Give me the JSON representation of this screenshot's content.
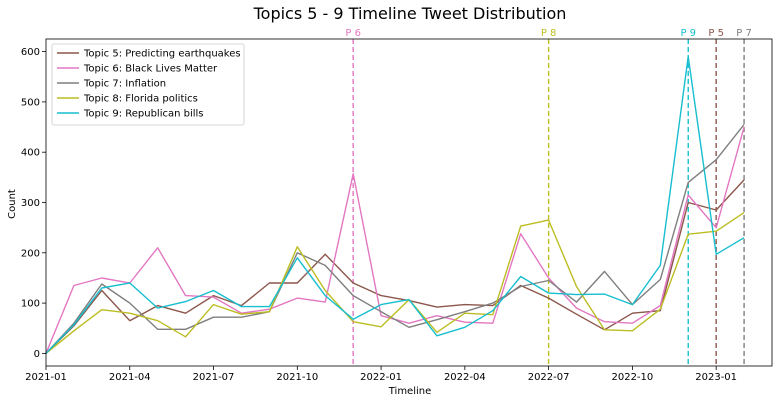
{
  "chart_data": {
    "type": "line",
    "title": "Topics 5 - 9 Timeline Tweet Distribution",
    "xlabel": "Timeline",
    "ylabel": "Count",
    "x": [
      "2021-01",
      "2021-02",
      "2021-03",
      "2021-04",
      "2021-05",
      "2021-06",
      "2021-07",
      "2021-08",
      "2021-09",
      "2021-10",
      "2021-11",
      "2021-12",
      "2022-01",
      "2022-02",
      "2022-03",
      "2022-04",
      "2022-05",
      "2022-06",
      "2022-07",
      "2022-08",
      "2022-09",
      "2022-10",
      "2022-11",
      "2022-12",
      "2023-01",
      "2023-02"
    ],
    "x_ticks": [
      "2021-01",
      "2021-04",
      "2021-07",
      "2021-10",
      "2022-01",
      "2022-04",
      "2022-07",
      "2022-10",
      "2023-01"
    ],
    "xlim": [
      "2021-01",
      "2023-03"
    ],
    "ylim": [
      -25,
      625
    ],
    "y_ticks": [
      0,
      100,
      200,
      300,
      400,
      500,
      600
    ],
    "grid": false,
    "legend_position": "top-left",
    "series": [
      {
        "name": "Topic 5: Predicting earthquakes",
        "color": "#8c564b",
        "values": [
          0,
          55,
          125,
          65,
          95,
          80,
          115,
          95,
          140,
          140,
          197,
          140,
          115,
          105,
          92,
          97,
          95,
          135,
          110,
          78,
          47,
          80,
          85,
          300,
          285,
          345
        ]
      },
      {
        "name": "Topic 6: Black Lives Matter",
        "color": "#e377c2",
        "values": [
          0,
          135,
          150,
          140,
          210,
          115,
          112,
          80,
          88,
          110,
          102,
          357,
          75,
          60,
          75,
          62,
          60,
          238,
          150,
          90,
          63,
          60,
          95,
          315,
          250,
          450
        ]
      },
      {
        "name": "Topic 7: Inflation",
        "color": "#7f7f7f",
        "values": [
          0,
          60,
          138,
          100,
          48,
          48,
          72,
          72,
          83,
          200,
          175,
          115,
          83,
          52,
          67,
          83,
          100,
          133,
          145,
          102,
          163,
          97,
          147,
          340,
          385,
          455
        ]
      },
      {
        "name": "Topic 8: Florida politics",
        "color": "#bcbd22",
        "values": [
          0,
          45,
          87,
          80,
          65,
          33,
          97,
          78,
          83,
          212,
          125,
          63,
          53,
          107,
          42,
          80,
          77,
          253,
          265,
          133,
          47,
          45,
          88,
          237,
          243,
          280
        ]
      },
      {
        "name": "Topic 9: Republican bills",
        "color": "#17becf",
        "values": [
          0,
          57,
          130,
          140,
          90,
          103,
          125,
          93,
          93,
          190,
          115,
          68,
          97,
          107,
          35,
          52,
          85,
          153,
          120,
          117,
          118,
          97,
          175,
          590,
          197,
          230
        ]
      }
    ],
    "annotations": [
      {
        "label": "P 6",
        "x": "2021-12",
        "color": "#e377c2"
      },
      {
        "label": "P 8",
        "x": "2022-07",
        "color": "#bcbd22"
      },
      {
        "label": "P 9",
        "x": "2022-12",
        "color": "#17becf"
      },
      {
        "label": "P 5",
        "x": "2023-01",
        "color": "#8c564b"
      },
      {
        "label": "P 7",
        "x": "2023-02",
        "color": "#7f7f7f"
      }
    ]
  }
}
